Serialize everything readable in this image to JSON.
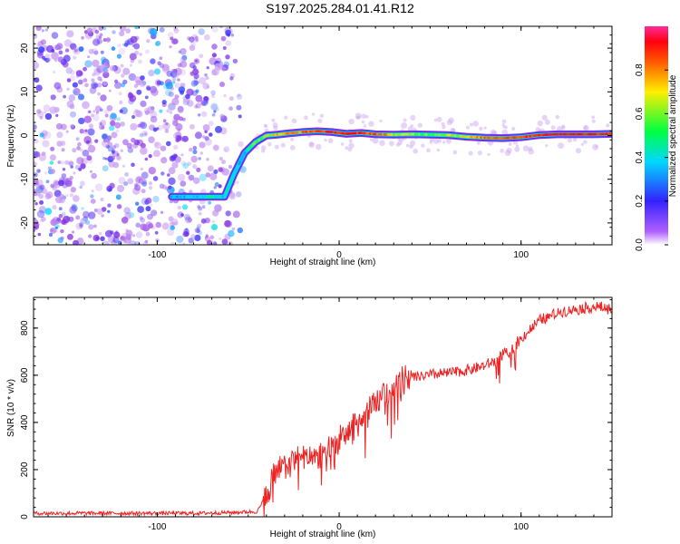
{
  "title": "S197.2025.284.01.41.R12",
  "chart_data": [
    {
      "type": "heatmap",
      "name": "spectrogram",
      "xlabel": "Height of straight line (km)",
      "ylabel": "Frequency (Hz)",
      "xlim": [
        -168,
        150
      ],
      "ylim": [
        -25,
        25
      ],
      "xticks": [
        -100,
        0,
        100
      ],
      "xtick_labels": [
        "-100",
        "0",
        "100"
      ],
      "yticks": [
        -20,
        -10,
        0,
        10,
        20
      ],
      "ytick_labels": [
        "-20",
        "-10",
        "0",
        "10",
        "20"
      ],
      "colorbar": {
        "label": "Normalized spectral amplitude",
        "range": [
          0,
          1
        ],
        "ticks": [
          0.0,
          0.2,
          0.4,
          0.6,
          0.8
        ],
        "tick_labels": [
          "0.0",
          "0.2",
          "0.4",
          "0.6",
          "0.8"
        ],
        "colors": [
          "#ffffff",
          "#8a2be2",
          "#3333ff",
          "#00d8ff",
          "#00ff60",
          "#ffe000",
          "#ff6a00",
          "#ff0000",
          "#ff2a9a"
        ]
      },
      "ridge": {
        "x": [
          -92,
          -80,
          -70,
          -63,
          -58,
          -52,
          -46,
          -40,
          -34,
          -28,
          -20,
          -12,
          -4,
          4,
          12,
          20,
          30,
          40,
          50,
          60,
          70,
          80,
          90,
          100,
          110,
          120,
          130,
          140,
          150
        ],
        "freq": [
          -14,
          -14,
          -14,
          -14,
          -9,
          -4,
          -1.5,
          0,
          0.2,
          0.5,
          0.8,
          1,
          0.8,
          0.4,
          0.6,
          0.3,
          0.2,
          0.3,
          0.2,
          0.1,
          -0.3,
          -0.5,
          -0.6,
          -0.4,
          0.1,
          0.3,
          0.3,
          0.3,
          0.4
        ],
        "amplitude": [
          0.35,
          0.4,
          0.45,
          0.4,
          0.35,
          0.4,
          0.55,
          0.6,
          0.65,
          0.7,
          0.75,
          0.8,
          0.85,
          0.85,
          0.8,
          0.8,
          0.6,
          0.55,
          0.55,
          0.6,
          0.6,
          0.75,
          0.8,
          0.8,
          0.85,
          0.9,
          0.9,
          0.85,
          0.85
        ]
      },
      "noise_region_x": [
        -168,
        -52
      ]
    },
    {
      "type": "line",
      "name": "snr",
      "color": "#ee2222",
      "xlabel": "Height of straight line (km)",
      "ylabel": "SNR (10 * v/v)",
      "xlim": [
        -168,
        150
      ],
      "ylim": [
        0,
        930
      ],
      "xticks": [
        -100,
        0,
        100
      ],
      "xtick_labels": [
        "-100",
        "0",
        "100"
      ],
      "yticks": [
        0,
        200,
        400,
        600,
        800
      ],
      "ytick_labels": [
        "0",
        "200",
        "400",
        "600",
        "800"
      ],
      "x": [
        -168,
        -140,
        -110,
        -80,
        -60,
        -45,
        -40,
        -36,
        -32,
        -28,
        -24,
        -20,
        -16,
        -12,
        -8,
        -4,
        0,
        4,
        8,
        12,
        16,
        20,
        26,
        30,
        40,
        50,
        60,
        70,
        80,
        86,
        90,
        94,
        98,
        102,
        106,
        110,
        116,
        122,
        130,
        140,
        150
      ],
      "snr": [
        15,
        15,
        15,
        15,
        18,
        22,
        90,
        170,
        200,
        220,
        240,
        270,
        230,
        250,
        280,
        300,
        320,
        350,
        380,
        410,
        440,
        480,
        520,
        560,
        590,
        600,
        610,
        620,
        640,
        660,
        690,
        700,
        740,
        770,
        800,
        830,
        850,
        870,
        880,
        890,
        880
      ]
    }
  ]
}
